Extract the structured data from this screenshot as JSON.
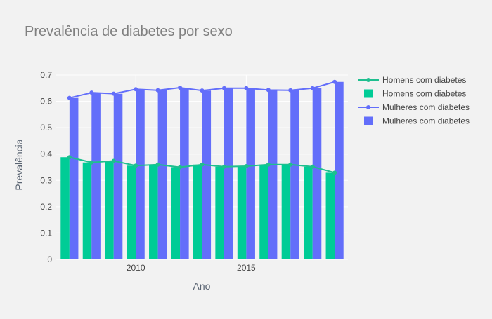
{
  "chart_data": {
    "type": "bar",
    "title": "Prevalência de diabetes por sexo",
    "xlabel": "Ano",
    "ylabel": "Prevalência",
    "x": [
      2007,
      2008,
      2009,
      2010,
      2011,
      2012,
      2013,
      2014,
      2015,
      2016,
      2017,
      2018,
      2019
    ],
    "xticks": [
      "2010",
      "2015"
    ],
    "yticks": [
      "0",
      "0.1",
      "0.2",
      "0.3",
      "0.4",
      "0.5",
      "0.6",
      "0.7"
    ],
    "ylim": [
      0,
      0.7
    ],
    "xlim": [
      2006.4,
      2019.6
    ],
    "grid": true,
    "legend_position": "right",
    "series": [
      {
        "name": "Homens com diabetes",
        "kind": "line",
        "color": "#1fbf8f",
        "values": [
          0.388,
          0.368,
          0.374,
          0.356,
          0.36,
          0.35,
          0.36,
          0.352,
          0.354,
          0.36,
          0.36,
          0.352,
          0.329
        ]
      },
      {
        "name": "Homens com diabetes",
        "kind": "bar",
        "color": "#00cc96",
        "values": [
          0.388,
          0.368,
          0.374,
          0.356,
          0.36,
          0.35,
          0.36,
          0.352,
          0.354,
          0.36,
          0.36,
          0.352,
          0.329
        ]
      },
      {
        "name": "Mulheres com diabetes",
        "kind": "line",
        "color": "#636efa",
        "values": [
          0.613,
          0.633,
          0.629,
          0.646,
          0.642,
          0.652,
          0.641,
          0.65,
          0.65,
          0.643,
          0.642,
          0.65,
          0.674
        ]
      },
      {
        "name": "Mulheres com diabetes",
        "kind": "bar",
        "color": "#636efa",
        "values": [
          0.613,
          0.633,
          0.629,
          0.646,
          0.642,
          0.652,
          0.641,
          0.65,
          0.65,
          0.643,
          0.642,
          0.65,
          0.674
        ]
      }
    ]
  }
}
